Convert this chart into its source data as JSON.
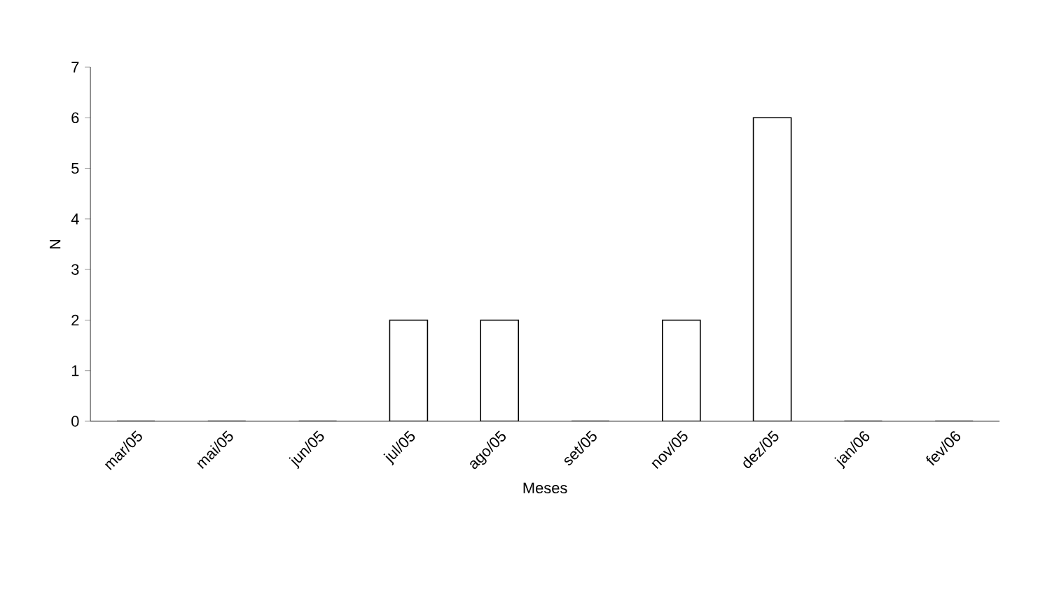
{
  "chart_data": {
    "type": "bar",
    "xlabel": "Meses",
    "ylabel": "N",
    "categories": [
      "mar/05",
      "mai/05",
      "jun/05",
      "jul/05",
      "ago/05",
      "set/05",
      "nov/05",
      "dez/05",
      "jan/06",
      "fev/06"
    ],
    "values": [
      0,
      0,
      0,
      2,
      2,
      0,
      2,
      6,
      0,
      0
    ],
    "color": "#ffffff",
    "ylim": [
      0,
      7
    ],
    "yticks": [
      0,
      1,
      2,
      3,
      4,
      5,
      6,
      7
    ],
    "grid": false
  }
}
